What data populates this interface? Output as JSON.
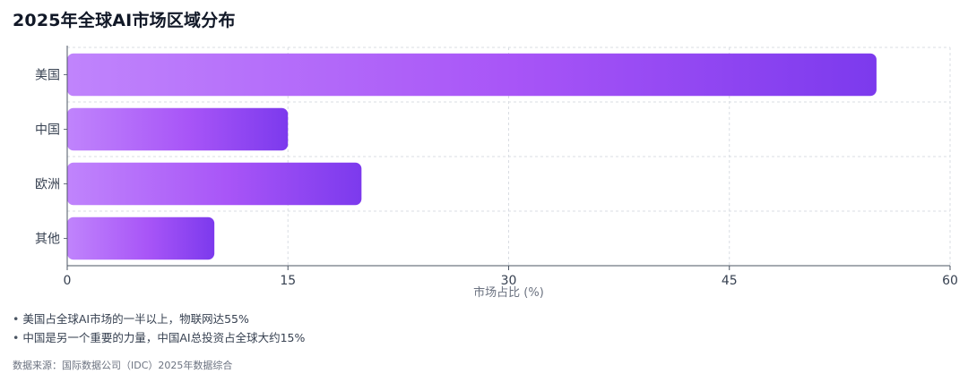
{
  "title": "2025年全球AI市场区域分布",
  "chart_data": {
    "type": "bar",
    "orientation": "horizontal",
    "categories": [
      "美国",
      "中国",
      "欧洲",
      "其他"
    ],
    "values": [
      55,
      15,
      20,
      10
    ],
    "xlabel": "市场占比 (%)",
    "ylabel": "",
    "xlim": [
      0,
      60
    ],
    "xticks": [
      "0",
      "15",
      "30",
      "45",
      "60"
    ],
    "grid": true,
    "bar_gradient": [
      "#c084fc",
      "#a855f7",
      "#7c3aed"
    ]
  },
  "notes": [
    "美国占全球AI市场的一半以上，物联网达55%",
    "中国是另一个重要的力量，中国AI总投资占全球大约15%"
  ],
  "source": "数据来源：国际数据公司（IDC）2025年数据综合"
}
